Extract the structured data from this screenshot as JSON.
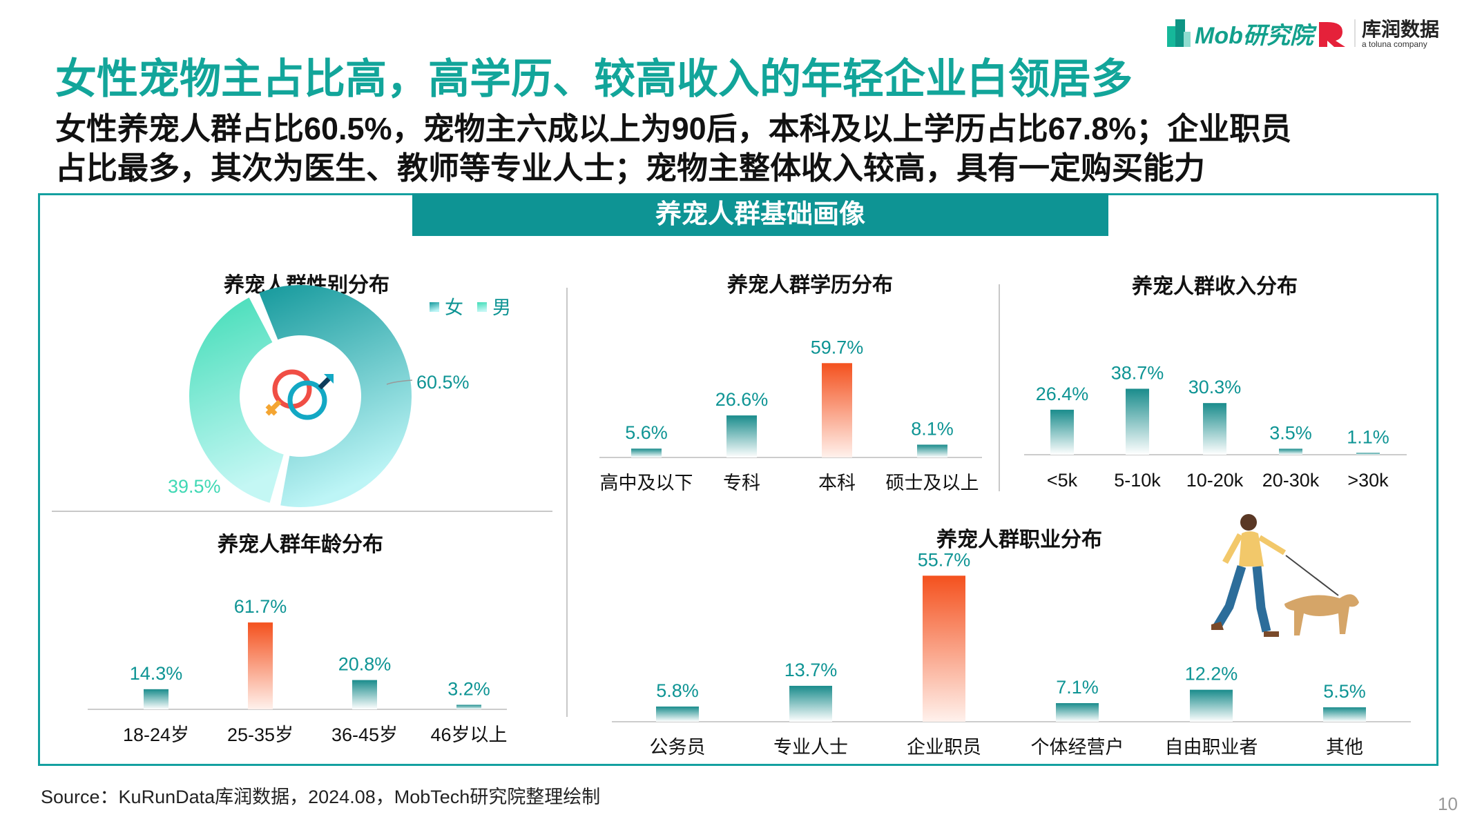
{
  "title": "女性宠物主占比高，高学历、较高收入的年轻企业白领居多",
  "subtitle_lines": [
    "女性养宠人群占比60.5%，宠物主六成以上为90后，本科及以上学历占比67.8%；企业职员",
    "占比最多，其次为医生、教师等专业人士；宠物主整体收入较高，具有一定购买能力"
  ],
  "section_header": "养宠人群基础画像",
  "logos": {
    "mob": "Mob研究院",
    "kurun": "库润数据",
    "kurun_tag": "a toluna company"
  },
  "source": "Source：KuRunData库润数据，2024.08，MobTech研究院整理绘制",
  "page_number": "10",
  "colors": {
    "teal": "#0e9494",
    "highlight": "#f4511e",
    "male": "#4fdcbc"
  },
  "chart_data": [
    {
      "id": "gender",
      "type": "pie",
      "donut": true,
      "title": "养宠人群性别分布",
      "legend": [
        "女",
        "男"
      ],
      "legend_position": "top-right",
      "categories": [
        "女",
        "男"
      ],
      "values": [
        60.5,
        39.5
      ],
      "labels": [
        "60.5%",
        "39.5%"
      ],
      "center_icon": "gender-symbol-icon"
    },
    {
      "id": "education",
      "type": "bar",
      "title": "养宠人群学历分布",
      "categories": [
        "高中及以下",
        "专科",
        "本科",
        "硕士及以上"
      ],
      "values": [
        5.6,
        26.6,
        59.7,
        8.1
      ],
      "labels": [
        "5.6%",
        "26.6%",
        "59.7%",
        "8.1%"
      ],
      "highlight": 2
    },
    {
      "id": "income",
      "type": "bar",
      "title": "养宠人群收入分布",
      "categories": [
        "<5k",
        "5-10k",
        "10-20k",
        "20-30k",
        ">30k"
      ],
      "values": [
        26.4,
        38.7,
        30.3,
        3.5,
        1.1
      ],
      "labels": [
        "26.4%",
        "38.7%",
        "30.3%",
        "3.5%",
        "1.1%"
      ],
      "highlight": -1
    },
    {
      "id": "age",
      "type": "bar",
      "title": "养宠人群年龄分布",
      "categories": [
        "18-24岁",
        "25-35岁",
        "36-45岁",
        "46岁以上"
      ],
      "values": [
        14.3,
        61.7,
        20.8,
        3.2
      ],
      "labels": [
        "14.3%",
        "61.7%",
        "20.8%",
        "3.2%"
      ],
      "highlight": 1
    },
    {
      "id": "occupation",
      "type": "bar",
      "title": "养宠人群职业分布",
      "categories": [
        "公务员",
        "专业人士",
        "企业职员",
        "个体经营户",
        "自由职业者",
        "其他"
      ],
      "values": [
        5.8,
        13.7,
        55.7,
        7.1,
        12.2,
        5.5
      ],
      "labels": [
        "5.8%",
        "13.7%",
        "55.7%",
        "7.1%",
        "12.2%",
        "5.5%"
      ],
      "highlight": 2
    }
  ]
}
